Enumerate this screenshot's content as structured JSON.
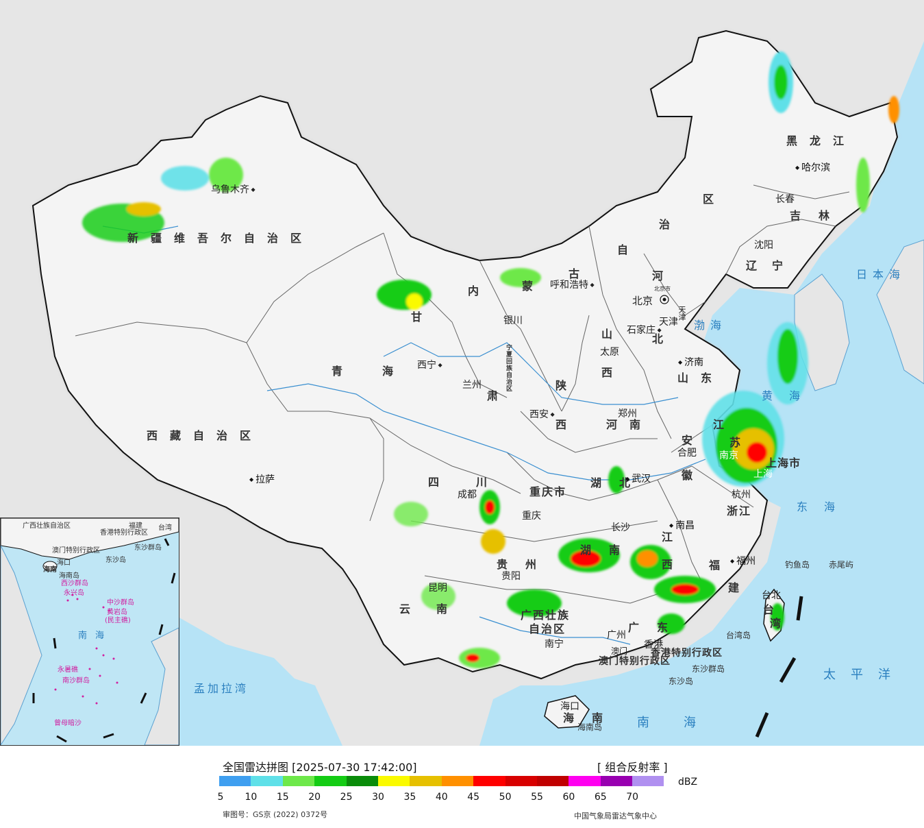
{
  "map": {
    "provinces": {
      "xinjiang": "新疆维吾尔自治区",
      "tibet": "西藏自治区",
      "qinghai": "青海",
      "gansu_a": "甘",
      "gansu_b": "肃",
      "neimenggu_a": "内",
      "neimenggu_b": "蒙",
      "neimenggu_c": "古",
      "neimenggu_d": "自",
      "neimenggu_e": "治",
      "neimenggu_f": "区",
      "heilongjiang": "黑龙江",
      "jilin": "吉林",
      "liaoning": "辽宁",
      "hebei_a": "河",
      "hebei_b": "北",
      "shanxi_a": "山",
      "shanxi_b": "西",
      "shandong": "山东",
      "shaanxi_a": "陕",
      "shaanxi_b": "西",
      "henan": "河南",
      "sichuan": "四川",
      "chongqing": "重庆市",
      "hubei": "湖北",
      "anhui_a": "安",
      "anhui_b": "徽",
      "jiangsu_a": "江",
      "jiangsu_b": "苏",
      "zhejiang": "浙江",
      "jiangxi_a": "江",
      "jiangxi_b": "西",
      "hunan": "湖南",
      "guizhou": "贵州",
      "yunnan": "云南",
      "guangxi_a": "广西壮族",
      "guangxi_b": "自治区",
      "guangdong": "广东",
      "fujian_a": "福",
      "fujian_b": "建",
      "taiwan_a": "台",
      "taiwan_b": "湾",
      "hainan": "海南",
      "ningxia": "宁夏回族自治区",
      "tianjin": "天津",
      "shanghai": "上海市",
      "hk": "香港特别行政区",
      "macau": "澳门特别行政区"
    },
    "cities": {
      "urumqi": "乌鲁木齐",
      "lhasa": "拉萨",
      "xining": "西宁",
      "lanzhou": "兰州",
      "yinchuan": "银川",
      "hohhot": "呼和浩特",
      "beijing": "北京",
      "tianjin": "天津",
      "shijiazhuang": "石家庄",
      "taiyuan": "太原",
      "jinan": "济南",
      "xian": "西安",
      "zhengzhou": "郑州",
      "chengdu": "成都",
      "chongqing": "重庆",
      "wuhan": "武汉",
      "hefei": "合肥",
      "nanjing": "南京",
      "shanghai": "上海",
      "hangzhou": "杭州",
      "nanchang": "南昌",
      "changsha": "长沙",
      "guiyang": "贵阳",
      "kunming": "昆明",
      "nanning": "南宁",
      "guangzhou": "广州",
      "hongkong": "香港",
      "macau": "澳门",
      "fuzhou": "福州",
      "taipei": "台北",
      "haikou": "海口",
      "shenyang": "沈阳",
      "changchun": "长春",
      "harbin": "哈尔滨"
    },
    "beijing_marker": "北京市",
    "seas": {
      "japan_sea": "日本海",
      "bohai": "渤海",
      "yellow_sea": "黄海",
      "east_sea": "东海",
      "pacific": "太平洋",
      "south_sea": "南海",
      "bengal": "孟加拉湾"
    },
    "islands": {
      "diaoyu": "钓鱼岛",
      "chiwei": "赤尾屿",
      "taiwan_island": "台湾岛",
      "hainan_island": "海南岛",
      "dongsha_group": "东沙群岛",
      "dongsha": "东沙岛"
    }
  },
  "inset": {
    "labels": {
      "guangxi": "广西壮族自治区",
      "hk": "香港特别行政区",
      "macau": "澳门特别行政区",
      "dongsha": "东沙群岛",
      "dongsha_isl": "东沙岛",
      "haikou": "海口",
      "hainan": "海南",
      "hainan_isl": "海南岛",
      "xisha": "西沙群岛",
      "yongxing": "永兴岛",
      "zhongsha": "中沙群岛",
      "huangyan": "黄岩岛",
      "minzhu": "(民主礁)",
      "nansha": "南沙群岛",
      "yongshu": "永暑礁",
      "zengmu": "曾母暗沙",
      "taiwan": "台湾",
      "fujian": "福建",
      "south_sea": "南海"
    }
  },
  "legend": {
    "title": "全国雷达拼图 [2025-07-30 17:42:00]",
    "product": "[ 组合反射率 ]",
    "unit": "dBZ",
    "colors": [
      "#3f9ff0",
      "#5fe0e8",
      "#6ee84a",
      "#14cc14",
      "#0a8c0a",
      "#fafa00",
      "#e6c000",
      "#ff9000",
      "#ff0000",
      "#d80000",
      "#c00000",
      "#ff00f0",
      "#9800b0",
      "#b090f0"
    ],
    "ticks": [
      "5",
      "10",
      "15",
      "20",
      "25",
      "30",
      "35",
      "40",
      "45",
      "50",
      "55",
      "60",
      "65",
      "70"
    ],
    "review_no": "审图号：GS京 (2022) 0372号",
    "source": "中国气象局雷达气象中心"
  }
}
